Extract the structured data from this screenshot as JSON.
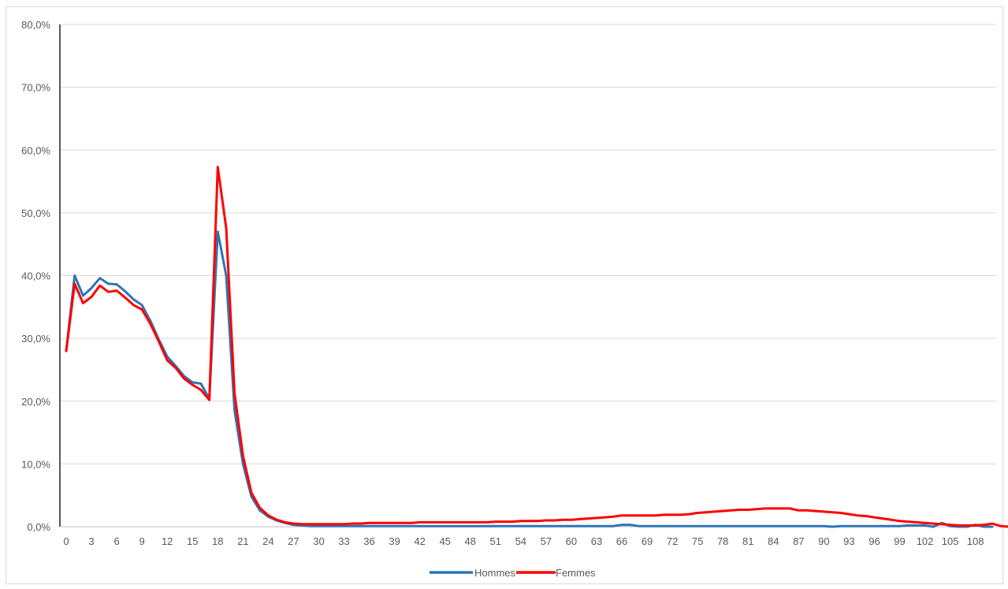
{
  "chart_data": {
    "type": "line",
    "title": "",
    "xlabel": "",
    "ylabel": "",
    "ylim": [
      0,
      80
    ],
    "y_ticks": [
      "0,0%",
      "10,0%",
      "20,0%",
      "30,0%",
      "40,0%",
      "50,0%",
      "60,0%",
      "70,0%",
      "80,0%"
    ],
    "x_ticks": [
      "0",
      "3",
      "6",
      "9",
      "12",
      "15",
      "18",
      "21",
      "24",
      "27",
      "30",
      "33",
      "36",
      "39",
      "42",
      "45",
      "48",
      "51",
      "54",
      "57",
      "60",
      "63",
      "66",
      "69",
      "72",
      "75",
      "78",
      "81",
      "84",
      "87",
      "90",
      "93",
      "96",
      "99",
      "102",
      "105",
      "108"
    ],
    "x_range": [
      0,
      110
    ],
    "grid": "horizontal",
    "legend_position": "bottom",
    "series": [
      {
        "name": "Hommes",
        "color": "#2e75b6",
        "values": [
          28.0,
          40.0,
          36.8,
          38.0,
          39.6,
          38.7,
          38.6,
          37.5,
          36.2,
          35.3,
          32.8,
          29.8,
          27.1,
          25.6,
          24.0,
          23.0,
          22.8,
          20.4,
          47.0,
          40.0,
          18.5,
          10.0,
          4.8,
          2.6,
          1.6,
          1.0,
          0.6,
          0.3,
          0.2,
          0.1,
          0.1,
          0.1,
          0.1,
          0.1,
          0.1,
          0.1,
          0.1,
          0.1,
          0.1,
          0.1,
          0.1,
          0.1,
          0.1,
          0.1,
          0.1,
          0.1,
          0.1,
          0.1,
          0.1,
          0.1,
          0.1,
          0.1,
          0.1,
          0.1,
          0.1,
          0.1,
          0.1,
          0.1,
          0.1,
          0.1,
          0.1,
          0.1,
          0.1,
          0.1,
          0.1,
          0.1,
          0.3,
          0.3,
          0.1,
          0.1,
          0.1,
          0.1,
          0.1,
          0.1,
          0.1,
          0.1,
          0.1,
          0.1,
          0.1,
          0.1,
          0.1,
          0.1,
          0.1,
          0.1,
          0.1,
          0.1,
          0.1,
          0.1,
          0.1,
          0.1,
          0.1,
          0.0,
          0.1,
          0.1,
          0.1,
          0.1,
          0.1,
          0.1,
          0.1,
          0.1,
          0.2,
          0.2,
          0.2,
          0.0,
          0.6,
          0.1,
          0.0,
          0.0,
          0.3,
          0.0,
          0.0
        ]
      },
      {
        "name": "Femmes",
        "color": "#ff0000",
        "values": [
          28.0,
          38.7,
          35.6,
          36.6,
          38.4,
          37.4,
          37.6,
          36.5,
          35.3,
          34.6,
          32.3,
          29.5,
          26.5,
          25.3,
          23.6,
          22.6,
          21.8,
          20.2,
          57.3,
          47.6,
          21.2,
          11.3,
          5.4,
          3.0,
          1.8,
          1.1,
          0.7,
          0.5,
          0.4,
          0.4,
          0.4,
          0.4,
          0.4,
          0.4,
          0.5,
          0.5,
          0.6,
          0.6,
          0.6,
          0.6,
          0.6,
          0.6,
          0.7,
          0.7,
          0.7,
          0.7,
          0.7,
          0.7,
          0.7,
          0.7,
          0.7,
          0.8,
          0.8,
          0.8,
          0.9,
          0.9,
          0.9,
          1.0,
          1.0,
          1.1,
          1.1,
          1.2,
          1.3,
          1.4,
          1.5,
          1.6,
          1.8,
          1.8,
          1.8,
          1.8,
          1.8,
          1.9,
          1.9,
          1.9,
          2.0,
          2.2,
          2.3,
          2.4,
          2.5,
          2.6,
          2.7,
          2.7,
          2.8,
          2.9,
          2.9,
          2.9,
          2.9,
          2.6,
          2.6,
          2.5,
          2.4,
          2.3,
          2.2,
          2.0,
          1.8,
          1.7,
          1.5,
          1.3,
          1.1,
          0.9,
          0.8,
          0.7,
          0.6,
          0.5,
          0.4,
          0.3,
          0.2,
          0.2,
          0.2,
          0.3,
          0.5,
          0.1,
          0.0
        ]
      }
    ]
  }
}
